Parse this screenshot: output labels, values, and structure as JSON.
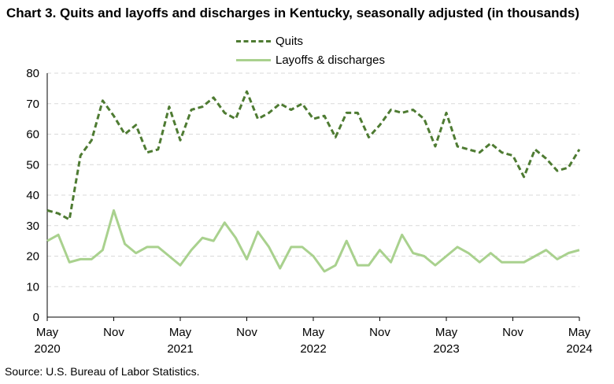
{
  "title": "Chart 3. Quits and layoffs and discharges in Kentucky, seasonally adjusted (in thousands)",
  "source": "Source: U.S. Bureau of Labor Statistics.",
  "colors": {
    "quits": "#4e7b32",
    "layoffs": "#a9d18e",
    "grid": "#d9d9d9",
    "axis": "#000000"
  },
  "chart_data": {
    "type": "line",
    "title": "Chart 3. Quits and layoffs and discharges in Kentucky, seasonally adjusted (in thousands)",
    "xlabel": "",
    "ylabel": "",
    "ylim": [
      0,
      80
    ],
    "yticks": [
      0,
      10,
      20,
      30,
      40,
      50,
      60,
      70,
      80
    ],
    "grid": true,
    "legend_position": "top-center",
    "x": [
      "2020-05",
      "2020-06",
      "2020-07",
      "2020-08",
      "2020-09",
      "2020-10",
      "2020-11",
      "2020-12",
      "2021-01",
      "2021-02",
      "2021-03",
      "2021-04",
      "2021-05",
      "2021-06",
      "2021-07",
      "2021-08",
      "2021-09",
      "2021-10",
      "2021-11",
      "2021-12",
      "2022-01",
      "2022-02",
      "2022-03",
      "2022-04",
      "2022-05",
      "2022-06",
      "2022-07",
      "2022-08",
      "2022-09",
      "2022-10",
      "2022-11",
      "2022-12",
      "2023-01",
      "2023-02",
      "2023-03",
      "2023-04",
      "2023-05",
      "2023-06",
      "2023-07",
      "2023-08",
      "2023-09",
      "2023-10",
      "2023-11",
      "2023-12",
      "2024-01",
      "2024-02",
      "2024-03",
      "2024-04",
      "2024-05"
    ],
    "x_tick_labels": [
      {
        "month": "May",
        "year": "2020"
      },
      {
        "month": "Nov",
        "year": ""
      },
      {
        "month": "May",
        "year": "2021"
      },
      {
        "month": "Nov",
        "year": ""
      },
      {
        "month": "May",
        "year": "2022"
      },
      {
        "month": "Nov",
        "year": ""
      },
      {
        "month": "May",
        "year": "2023"
      },
      {
        "month": "Nov",
        "year": ""
      },
      {
        "month": "May",
        "year": "2024"
      }
    ],
    "series": [
      {
        "name": "Quits",
        "style": "dashed",
        "values": [
          35,
          34,
          32,
          53,
          58,
          71,
          66,
          60,
          63,
          54,
          55,
          69,
          58,
          68,
          69,
          72,
          67,
          65,
          74,
          65,
          67,
          70,
          68,
          70,
          65,
          66,
          59,
          67,
          67,
          59,
          63,
          68,
          67,
          68,
          65,
          56,
          67,
          56,
          55,
          54,
          57,
          54,
          53,
          46,
          55,
          52,
          48,
          49,
          55
        ]
      },
      {
        "name": "Layoffs & discharges",
        "style": "solid",
        "values": [
          25,
          27,
          18,
          19,
          19,
          22,
          35,
          24,
          21,
          23,
          23,
          20,
          17,
          22,
          26,
          25,
          31,
          26,
          19,
          28,
          23,
          16,
          23,
          23,
          20,
          15,
          17,
          25,
          17,
          17,
          22,
          18,
          27,
          21,
          20,
          17,
          20,
          23,
          21,
          18,
          21,
          18,
          18,
          18,
          20,
          22,
          19,
          21,
          22
        ]
      }
    ]
  }
}
